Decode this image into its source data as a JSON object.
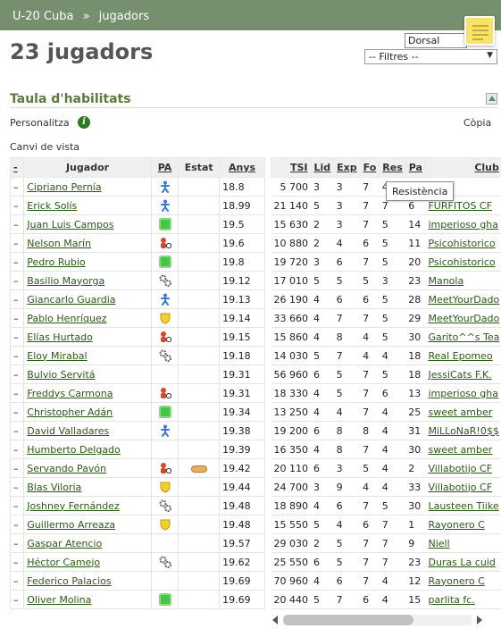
{
  "breadcrumb": [
    "U-20 Cuba",
    "»",
    "jugadors"
  ],
  "page_title": "23 jugadors",
  "sort_select": "Dorsal",
  "filter_select": "-- Filtres --",
  "section_title": "Taula d'habilitats",
  "personalize_label": "Personalitza",
  "copy_label": "Còpia",
  "view_change_label": "Canvi de vista",
  "tooltip": "Resistència",
  "columns_left": [
    "-",
    "Jugador",
    "PA",
    "Estat",
    "Anys"
  ],
  "columns_right": [
    "TSI",
    "Lid",
    "Exp",
    "Fo",
    "Res",
    "Pa",
    "Club"
  ],
  "players": [
    {
      "dash": "–",
      "name": "Cipriano Pernía",
      "pa": "blue",
      "estat": "",
      "anys": "18.8",
      "tsi": "5 700",
      "lid": "3",
      "exp": "3",
      "fo": "7",
      "res": "4",
      "pa2": "",
      "club": "Sam"
    },
    {
      "dash": "–",
      "name": "Erick Solís",
      "pa": "blue",
      "estat": "",
      "anys": "18.99",
      "tsi": "21 140",
      "lid": "5",
      "exp": "3",
      "fo": "7",
      "res": "7",
      "pa2": "6",
      "club": "FURFITOS CF"
    },
    {
      "dash": "–",
      "name": "Juan Luis Campos",
      "pa": "green",
      "estat": "",
      "anys": "19.5",
      "tsi": "15 630",
      "lid": "2",
      "exp": "3",
      "fo": "7",
      "res": "5",
      "pa2": "14",
      "club": "imperioso gha"
    },
    {
      "dash": "–",
      "name": "Nelson Marín",
      "pa": "red",
      "estat": "",
      "anys": "19.6",
      "tsi": "10 880",
      "lid": "2",
      "exp": "4",
      "fo": "6",
      "res": "5",
      "pa2": "11",
      "club": "Psicohistorico"
    },
    {
      "dash": "–",
      "name": "Pedro Rubio",
      "pa": "green",
      "estat": "",
      "anys": "19.8",
      "tsi": "19 720",
      "lid": "3",
      "exp": "6",
      "fo": "7",
      "res": "5",
      "pa2": "20",
      "club": "Psicohistorico"
    },
    {
      "dash": "–",
      "name": "Basilio Mayorga",
      "pa": "gear",
      "estat": "",
      "anys": "19.12",
      "tsi": "17 010",
      "lid": "5",
      "exp": "5",
      "fo": "5",
      "res": "3",
      "pa2": "23",
      "club": "Manola"
    },
    {
      "dash": "–",
      "name": "Giancarlo Guardia",
      "pa": "blue",
      "estat": "",
      "anys": "19.13",
      "tsi": "26 190",
      "lid": "4",
      "exp": "6",
      "fo": "6",
      "res": "5",
      "pa2": "28",
      "club": "MeetYourDado"
    },
    {
      "dash": "–",
      "name": "Pablo Henríquez",
      "pa": "yellow",
      "estat": "",
      "anys": "19.14",
      "tsi": "33 660",
      "lid": "4",
      "exp": "7",
      "fo": "7",
      "res": "5",
      "pa2": "29",
      "club": "MeetYourDado"
    },
    {
      "dash": "–",
      "name": "Elías Hurtado",
      "pa": "red",
      "estat": "",
      "anys": "19.15",
      "tsi": "15 860",
      "lid": "4",
      "exp": "8",
      "fo": "4",
      "res": "5",
      "pa2": "30",
      "club": "Garito^^s Tea"
    },
    {
      "dash": "–",
      "name": "Eloy Mirabal",
      "pa": "gear",
      "estat": "",
      "anys": "19.18",
      "tsi": "14 030",
      "lid": "5",
      "exp": "7",
      "fo": "4",
      "res": "4",
      "pa2": "18",
      "club": "Real Epomeo"
    },
    {
      "dash": "–",
      "name": "Bulvio Servitá",
      "pa": "",
      "estat": "",
      "anys": "19.31",
      "tsi": "56 960",
      "lid": "6",
      "exp": "5",
      "fo": "7",
      "res": "5",
      "pa2": "18",
      "club": "JessiCats F.K."
    },
    {
      "dash": "–",
      "name": "Freddys Carmona",
      "pa": "red",
      "estat": "",
      "anys": "19.31",
      "tsi": "18 330",
      "lid": "4",
      "exp": "5",
      "fo": "7",
      "res": "6",
      "pa2": "13",
      "club": "imperioso gha"
    },
    {
      "dash": "–",
      "name": "Christopher Adán",
      "pa": "green",
      "estat": "",
      "anys": "19.34",
      "tsi": "13 250",
      "lid": "4",
      "exp": "4",
      "fo": "7",
      "res": "4",
      "pa2": "25",
      "club": "sweet amber"
    },
    {
      "dash": "–",
      "name": "David Valladares",
      "pa": "blue",
      "estat": "",
      "anys": "19.38",
      "tsi": "19 200",
      "lid": "6",
      "exp": "8",
      "fo": "8",
      "res": "4",
      "pa2": "31",
      "club": "MiLLoNaR!0$$"
    },
    {
      "dash": "–",
      "name": "Humberto Delgado",
      "pa": "",
      "estat": "",
      "anys": "19.39",
      "tsi": "16 350",
      "lid": "4",
      "exp": "8",
      "fo": "7",
      "res": "4",
      "pa2": "30",
      "club": "sweet amber"
    },
    {
      "dash": "–",
      "name": "Servando Pavón",
      "pa": "red",
      "estat": "injury",
      "anys": "19.42",
      "tsi": "20 110",
      "lid": "6",
      "exp": "3",
      "fo": "5",
      "res": "4",
      "pa2": "2",
      "club": "Villabotijo CF"
    },
    {
      "dash": "–",
      "name": "Blas Viloria",
      "pa": "yellow",
      "estat": "",
      "anys": "19.44",
      "tsi": "24 700",
      "lid": "3",
      "exp": "9",
      "fo": "4",
      "res": "4",
      "pa2": "33",
      "club": "Villabotijo CF"
    },
    {
      "dash": "–",
      "name": "Joshney Fernández",
      "pa": "gear",
      "estat": "",
      "anys": "19.48",
      "tsi": "18 890",
      "lid": "4",
      "exp": "6",
      "fo": "7",
      "res": "5",
      "pa2": "30",
      "club": "Lausteen Tiike"
    },
    {
      "dash": "–",
      "name": "Guillermo Arreaza",
      "pa": "yellow",
      "estat": "",
      "anys": "19.48",
      "tsi": "15 550",
      "lid": "5",
      "exp": "4",
      "fo": "6",
      "res": "7",
      "pa2": "1",
      "club": "Rayonero C"
    },
    {
      "dash": "–",
      "name": "Gaspar Atencio",
      "pa": "",
      "estat": "",
      "anys": "19.57",
      "tsi": "29 030",
      "lid": "2",
      "exp": "5",
      "fo": "7",
      "res": "7",
      "pa2": "9",
      "club": "Niell"
    },
    {
      "dash": "–",
      "name": "Héctor Camejo",
      "pa": "gear",
      "estat": "",
      "anys": "19.62",
      "tsi": "25 550",
      "lid": "6",
      "exp": "5",
      "fo": "7",
      "res": "7",
      "pa2": "23",
      "club": "Duras La cuid"
    },
    {
      "dash": "–",
      "name": "Federico Palacios",
      "pa": "",
      "estat": "",
      "anys": "19.69",
      "tsi": "70 960",
      "lid": "4",
      "exp": "6",
      "fo": "7",
      "res": "4",
      "pa2": "12",
      "club": "Rayonero C"
    },
    {
      "dash": "–",
      "name": "Oliver Molina",
      "pa": "green",
      "estat": "",
      "anys": "19.69",
      "tsi": "20 440",
      "lid": "5",
      "exp": "7",
      "fo": "6",
      "res": "4",
      "pa2": "15",
      "club": "parlita fc."
    }
  ]
}
